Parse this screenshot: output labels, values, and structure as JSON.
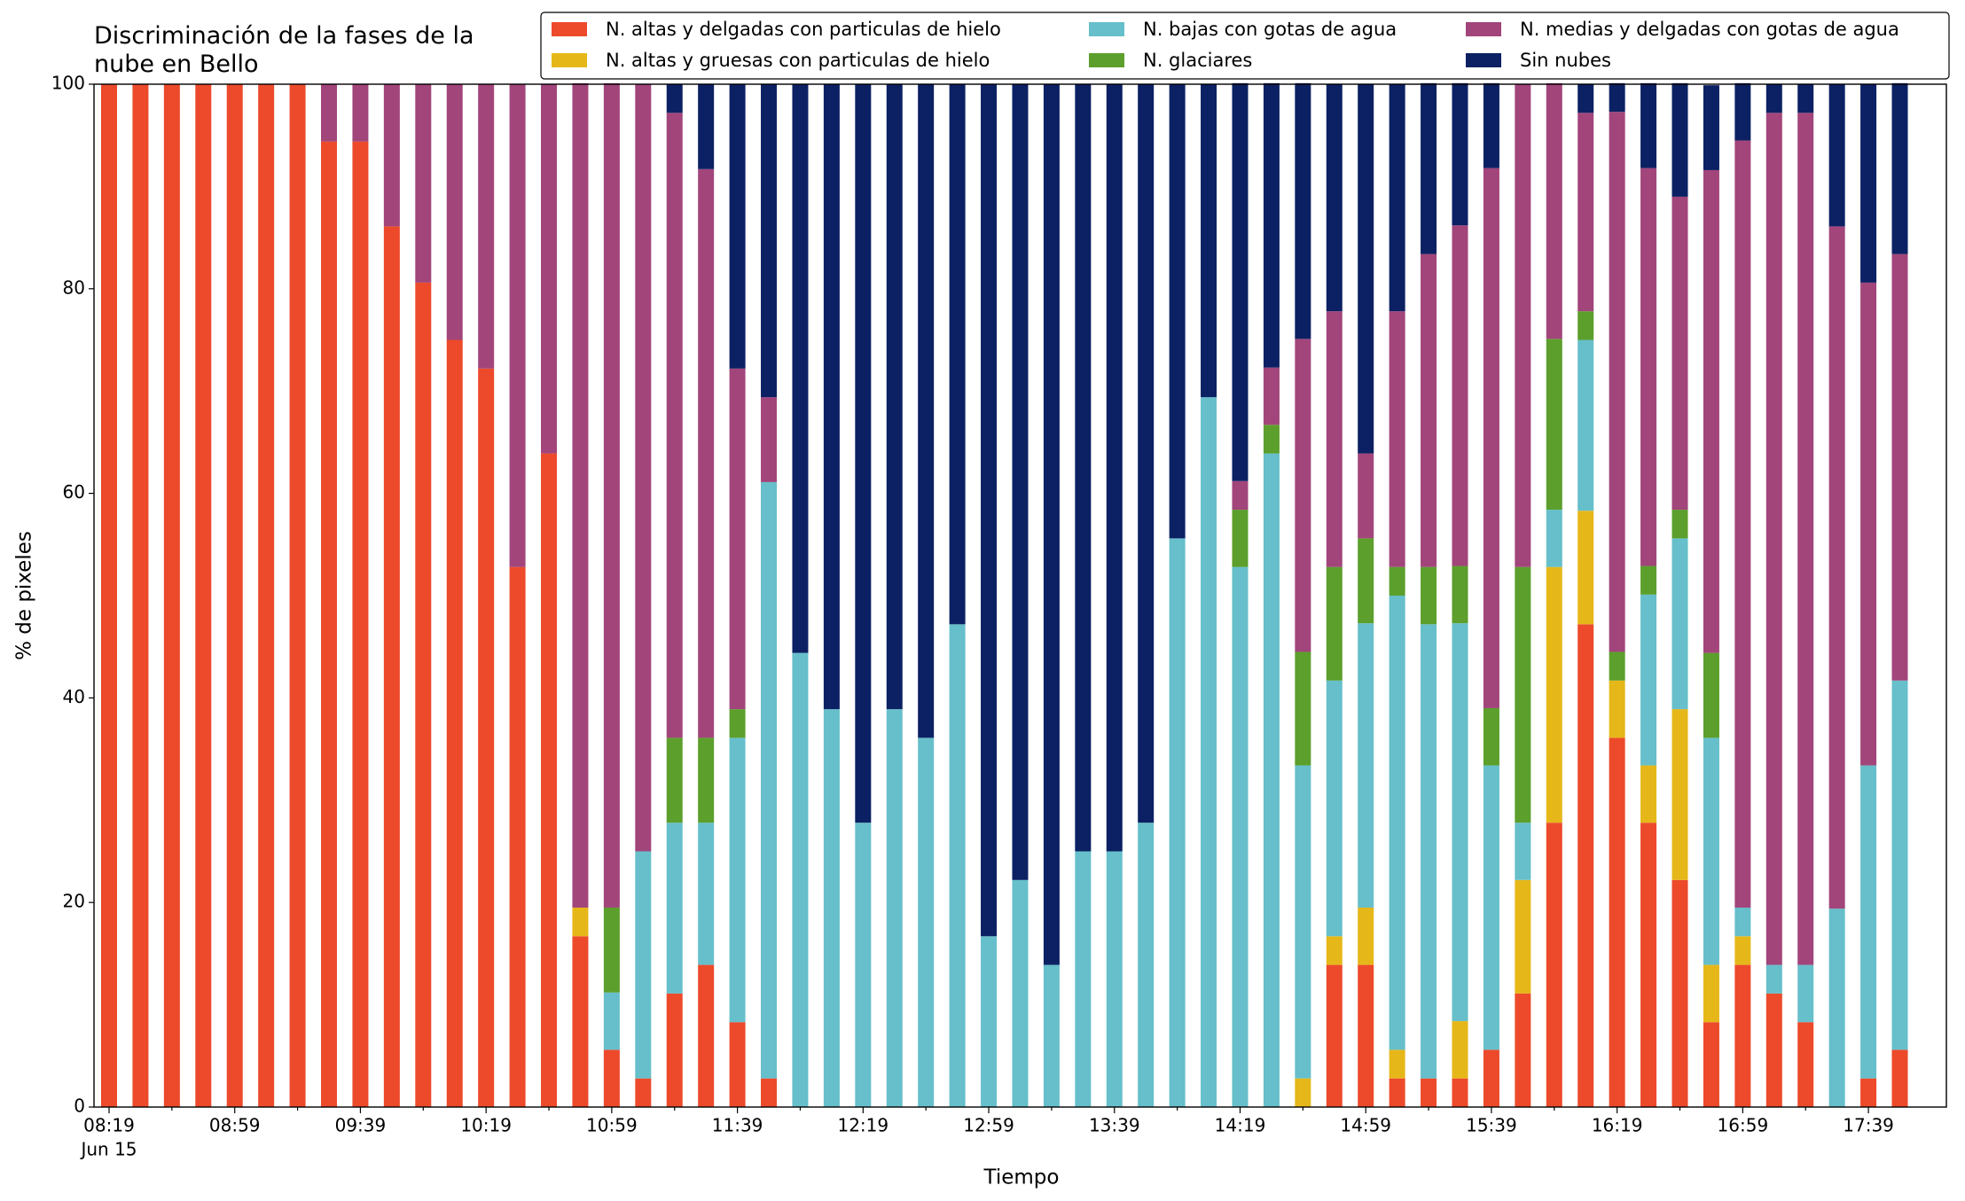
{
  "chart_data": {
    "type": "stacked_bar",
    "title": "Discriminación de la fases de la\nnube en Bello",
    "xlabel": "Tiempo",
    "ylabel": "% de pixeles",
    "x_sublabel": "Jun 15",
    "categories": [
      "08:19",
      null,
      null,
      null,
      "08:59",
      null,
      null,
      null,
      "09:39",
      null,
      null,
      null,
      "10:19",
      null,
      null,
      null,
      "10:59",
      null,
      null,
      null,
      "11:39",
      null,
      null,
      null,
      "12:19",
      null,
      null,
      null,
      "12:59",
      null,
      null,
      null,
      "13:39",
      null,
      null,
      null,
      "14:19",
      null,
      null,
      null,
      "14:59",
      null,
      null,
      null,
      "15:39",
      null,
      null,
      null,
      "16:19",
      null,
      null,
      null,
      "16:59",
      null,
      null,
      null,
      "17:39",
      null
    ],
    "ylim": [
      0,
      100
    ],
    "yticks": [
      0,
      20,
      40,
      60,
      80,
      100
    ],
    "legend": "upper right",
    "legend_columns": 3,
    "series": [
      {
        "name": "N. altas y delgadas con particulas de hielo",
        "color": "#ec4a2b",
        "values": [
          100,
          100,
          100,
          100,
          100,
          100,
          100,
          94.4,
          94.4,
          86.1,
          80.6,
          75,
          72.2,
          52.8,
          63.9,
          16.7,
          5.6,
          2.8,
          11.1,
          13.9,
          8.3,
          2.8,
          0,
          0,
          0,
          0,
          0,
          0,
          0,
          0,
          0,
          0,
          0,
          0,
          0,
          0,
          0,
          0,
          0,
          13.9,
          13.9,
          2.8,
          2.8,
          2.8,
          5.6,
          11.1,
          27.8,
          47.2,
          36.1,
          27.8,
          22.2,
          8.3,
          13.9,
          11.1,
          8.3,
          0,
          2.8,
          5.6
        ]
      },
      {
        "name": "N. altas y gruesas con particulas de hielo",
        "color": "#e6b719",
        "values": [
          0,
          0,
          0,
          0,
          0,
          0,
          0,
          0,
          0,
          0,
          0,
          0,
          0,
          0,
          0,
          2.8,
          0,
          0,
          0,
          0,
          0,
          0,
          0,
          0,
          0,
          0,
          0,
          0,
          0,
          0,
          0,
          0,
          0,
          0,
          0,
          0,
          0,
          0,
          2.8,
          2.8,
          5.6,
          2.8,
          0,
          5.6,
          0,
          11.1,
          25,
          11.1,
          5.6,
          5.6,
          16.7,
          5.6,
          2.8,
          0,
          0,
          0,
          0,
          0
        ]
      },
      {
        "name": "N. bajas con gotas de agua",
        "color": "#66bfca",
        "values": [
          0,
          0,
          0,
          0,
          0,
          0,
          0,
          0,
          0,
          0,
          0,
          0,
          0,
          0,
          0,
          0,
          5.6,
          22.2,
          16.7,
          13.9,
          27.8,
          58.3,
          44.4,
          38.9,
          27.8,
          38.9,
          36.1,
          47.2,
          16.7,
          22.2,
          13.9,
          25,
          25,
          27.8,
          55.6,
          69.4,
          52.8,
          63.9,
          30.6,
          25,
          27.8,
          44.4,
          44.4,
          38.9,
          27.8,
          5.6,
          5.6,
          16.7,
          0,
          16.7,
          16.7,
          22.2,
          2.8,
          2.8,
          5.6,
          19.4,
          30.6,
          36.1
        ]
      },
      {
        "name": "N. glaciares",
        "color": "#5c9f2c",
        "values": [
          0,
          0,
          0,
          0,
          0,
          0,
          0,
          0,
          0,
          0,
          0,
          0,
          0,
          0,
          0,
          0,
          8.3,
          0,
          8.3,
          8.3,
          2.8,
          0,
          0,
          0,
          0,
          0,
          0,
          0,
          0,
          0,
          0,
          0,
          0,
          0,
          0,
          0,
          5.6,
          2.8,
          11.1,
          11.1,
          8.3,
          2.8,
          5.6,
          5.6,
          5.6,
          25,
          16.7,
          2.8,
          2.8,
          2.8,
          2.8,
          8.3,
          0,
          0,
          0,
          0,
          0,
          0
        ]
      },
      {
        "name": "N. medias y delgadas con gotas de agua",
        "color": "#a2457b",
        "values": [
          0,
          0,
          0,
          0,
          0,
          0,
          0,
          5.6,
          5.6,
          13.9,
          19.4,
          25,
          27.8,
          47.2,
          36.1,
          80.6,
          80.6,
          75,
          61.1,
          55.6,
          33.3,
          8.3,
          0,
          0,
          0,
          0,
          0,
          0,
          0,
          0,
          0,
          0,
          0,
          0,
          0,
          0,
          2.8,
          5.6,
          30.6,
          25,
          8.3,
          25,
          30.6,
          33.3,
          52.8,
          47.2,
          25,
          19.4,
          52.8,
          38.9,
          30.6,
          47.2,
          75,
          83.3,
          83.3,
          66.7,
          47.2,
          41.7
        ]
      },
      {
        "name": "Sin nubes",
        "color": "#0c2163",
        "values": [
          0,
          0,
          0,
          0,
          0,
          0,
          0,
          0,
          0,
          0,
          0,
          0,
          0,
          0,
          0,
          0,
          0,
          0,
          2.8,
          8.3,
          27.8,
          30.6,
          55.6,
          61.1,
          72.2,
          61.1,
          63.9,
          52.8,
          83.3,
          77.8,
          86.1,
          75,
          75,
          72.2,
          44.4,
          30.6,
          38.9,
          27.8,
          25,
          22.2,
          36.1,
          22.2,
          16.7,
          13.9,
          8.3,
          0,
          0,
          2.8,
          2.8,
          8.3,
          11.1,
          8.3,
          5.6,
          2.8,
          2.8,
          13.9,
          19.4,
          16.7
        ]
      }
    ]
  }
}
